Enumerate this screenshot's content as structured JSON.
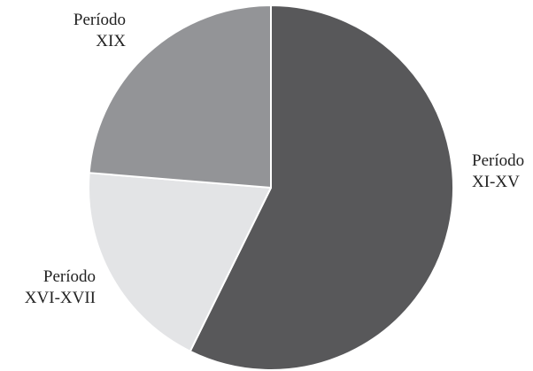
{
  "chart_data": {
    "type": "pie",
    "title": "",
    "start_angle_deg": 0,
    "direction": "clockwise",
    "slices": [
      {
        "label_lines": [
          "Período",
          "XI-XV"
        ],
        "value": 57.3,
        "color": "#58585a"
      },
      {
        "label_lines": [
          "Período",
          "XVI-XVII"
        ],
        "value": 19.0,
        "color": "#e3e4e6"
      },
      {
        "label_lines": [
          "Período",
          "XIX"
        ],
        "value": 23.7,
        "color": "#939497"
      }
    ]
  }
}
